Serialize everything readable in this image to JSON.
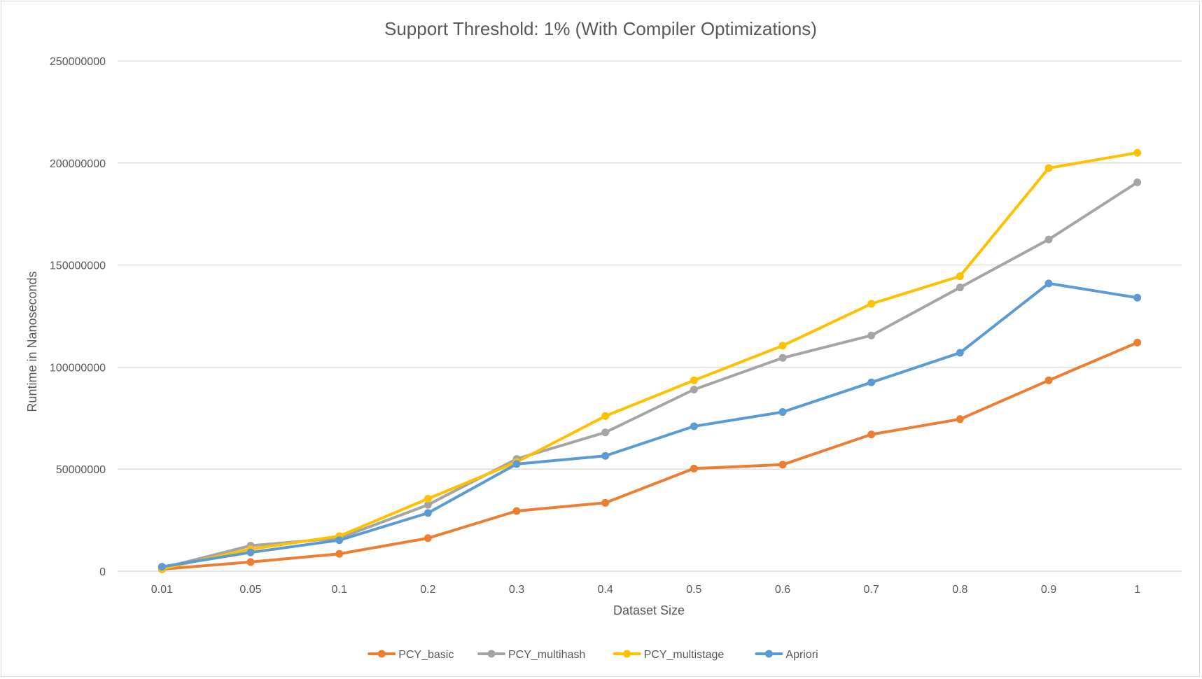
{
  "chart_data": {
    "type": "line",
    "title": "Support Threshold: 1% (With Compiler Optimizations)",
    "xlabel": "Dataset Size",
    "ylabel": "Runtime in Nanoseconds",
    "categories": [
      "0.01",
      "0.05",
      "0.1",
      "0.2",
      "0.3",
      "0.4",
      "0.5",
      "0.6",
      "0.7",
      "0.8",
      "0.9",
      "1"
    ],
    "y_ticks": [
      "0",
      "50000000",
      "100000000",
      "150000000",
      "200000000",
      "250000000"
    ],
    "ylim": [
      0,
      250000000
    ],
    "grid": true,
    "legend_position": "bottom",
    "series": [
      {
        "name": "PCY_basic",
        "color": "#ed7d31",
        "values": [
          1000000,
          4500000,
          8500000,
          16200000,
          29500000,
          33500000,
          50300000,
          52200000,
          67000000,
          74500000,
          93500000,
          112000000
        ]
      },
      {
        "name": "PCY_multihash",
        "color": "#a5a5a5",
        "values": [
          1500000,
          12500000,
          16200000,
          32500000,
          55000000,
          68000000,
          89000000,
          104500000,
          115500000,
          139000000,
          162500000,
          190500000
        ]
      },
      {
        "name": "PCY_multistage",
        "color": "#ffc000",
        "values": [
          1200000,
          10800000,
          17200000,
          35500000,
          53500000,
          76000000,
          93500000,
          110500000,
          131000000,
          144500000,
          197500000,
          205000000
        ]
      },
      {
        "name": "Apriori",
        "color": "#5b9bd5",
        "values": [
          2200000,
          9200000,
          15200000,
          28500000,
          52500000,
          56500000,
          71000000,
          78000000,
          92500000,
          107000000,
          141000000,
          134000000
        ]
      }
    ]
  }
}
